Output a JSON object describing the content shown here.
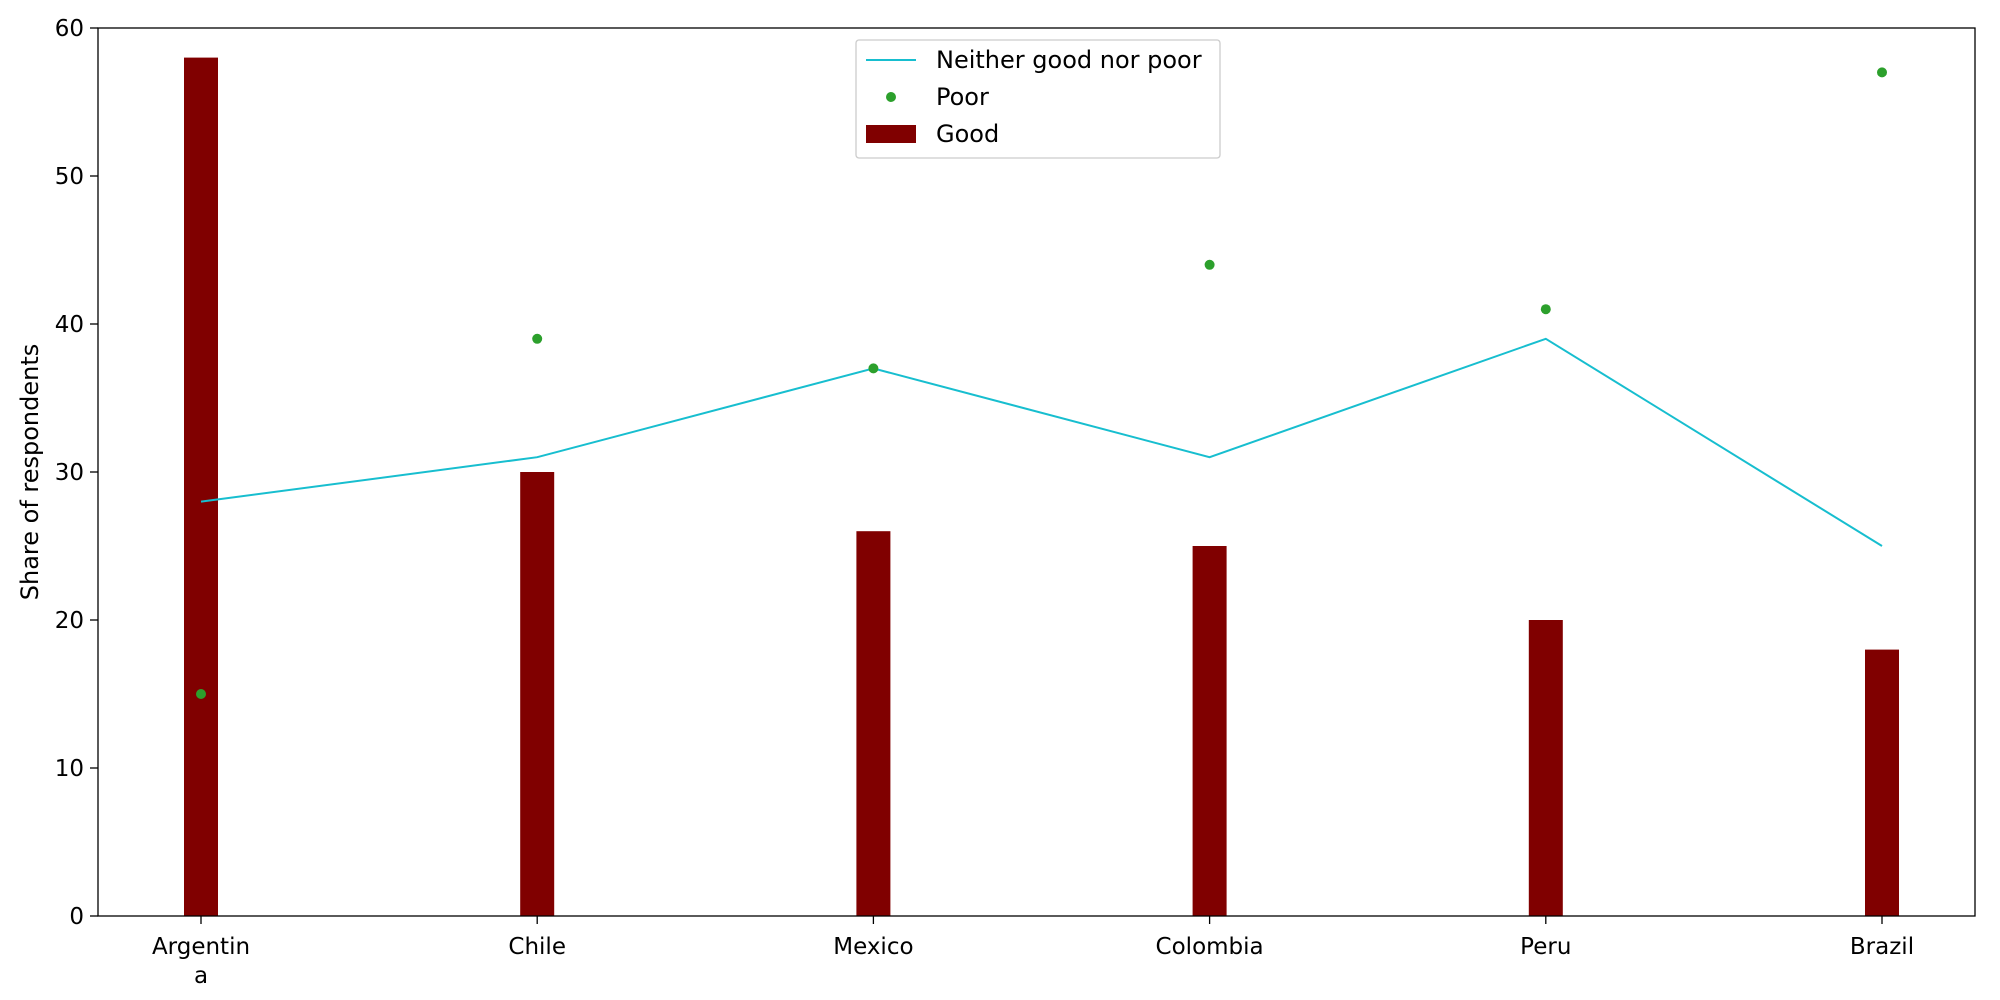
{
  "chart_data": {
    "type": "bar",
    "title": "",
    "xlabel": "",
    "ylabel": "Share of respondents",
    "categories": [
      "Argentina",
      "Chile",
      "Mexico",
      "Colombia",
      "Peru",
      "Brazil"
    ],
    "category_tick_lines": [
      [
        "Argentin",
        "a"
      ],
      [
        "Chile"
      ],
      [
        "Mexico"
      ],
      [
        "Colombia"
      ],
      [
        "Peru"
      ],
      [
        "Brazil"
      ]
    ],
    "ylim": [
      0,
      60
    ],
    "yticks": [
      0,
      10,
      20,
      30,
      40,
      50,
      60
    ],
    "grid": false,
    "legend_position": "top-center",
    "series": [
      {
        "name": "Good",
        "type": "bar",
        "color": "#800000",
        "values": [
          58,
          30,
          26,
          25,
          20,
          18
        ]
      },
      {
        "name": "Neither good nor poor",
        "type": "line",
        "color": "#17becf",
        "values": [
          28,
          31,
          37,
          31,
          39,
          25
        ]
      },
      {
        "name": "Poor",
        "type": "scatter",
        "color": "#2ca02c",
        "values": [
          15,
          39,
          37,
          44,
          41,
          57
        ]
      }
    ],
    "legend_order": [
      "Neither good nor poor",
      "Poor",
      "Good"
    ]
  }
}
